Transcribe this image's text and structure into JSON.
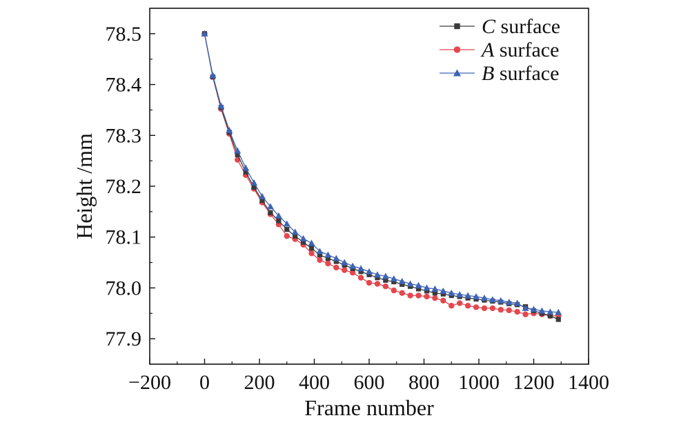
{
  "chart_data": {
    "type": "line",
    "title": "",
    "xlabel": "Frame number",
    "ylabel": "Height /mm",
    "xlim": [
      -200,
      1400
    ],
    "ylim": [
      77.85,
      78.55
    ],
    "xticks": [
      -200,
      0,
      200,
      400,
      600,
      800,
      1000,
      1200,
      1400
    ],
    "xtick_labels": [
      "−200",
      "0",
      "200",
      "400",
      "600",
      "800",
      "1000",
      "1200",
      "1400"
    ],
    "yticks": [
      77.9,
      78.0,
      78.1,
      78.2,
      78.3,
      78.4,
      78.5
    ],
    "ytick_labels": [
      "77.9",
      "78.0",
      "78.1",
      "78.2",
      "78.3",
      "78.4",
      "78.5"
    ],
    "grid": false,
    "legend_position": "top-right",
    "x": [
      0,
      30,
      60,
      90,
      120,
      150,
      180,
      210,
      240,
      270,
      300,
      330,
      360,
      390,
      420,
      450,
      480,
      510,
      540,
      570,
      600,
      630,
      660,
      690,
      720,
      750,
      780,
      810,
      840,
      870,
      900,
      930,
      960,
      990,
      1020,
      1050,
      1080,
      1110,
      1140,
      1170,
      1200,
      1230,
      1260,
      1290
    ],
    "series": [
      {
        "name": "C",
        "name_suffix": "surface",
        "marker": "square",
        "color": "#3a3a3a",
        "values": [
          78.5,
          78.415,
          78.355,
          78.306,
          78.262,
          78.228,
          78.198,
          78.172,
          78.148,
          78.132,
          78.115,
          78.102,
          78.09,
          78.078,
          78.065,
          78.058,
          78.052,
          78.045,
          78.038,
          78.032,
          78.026,
          78.02,
          78.015,
          78.012,
          78.007,
          78.003,
          77.998,
          77.994,
          77.99,
          77.988,
          77.985,
          77.983,
          77.98,
          77.978,
          77.976,
          77.974,
          77.972,
          77.969,
          77.967,
          77.963,
          77.955,
          77.95,
          77.945,
          77.938
        ]
      },
      {
        "name": "A",
        "name_suffix": "surface",
        "marker": "circle",
        "color": "#e4474e",
        "values": [
          78.5,
          78.415,
          78.352,
          78.303,
          78.252,
          78.222,
          78.195,
          78.168,
          78.145,
          78.125,
          78.102,
          78.096,
          78.085,
          78.068,
          78.055,
          78.048,
          78.04,
          78.035,
          78.03,
          78.02,
          78.01,
          78.008,
          78.003,
          77.995,
          77.99,
          77.985,
          77.985,
          77.983,
          77.98,
          77.975,
          77.965,
          77.97,
          77.965,
          77.962,
          77.96,
          77.96,
          77.957,
          77.956,
          77.953,
          77.948,
          77.95,
          77.948,
          77.945,
          77.945
        ]
      },
      {
        "name": "B",
        "name_suffix": "surface",
        "marker": "triangle",
        "color": "#3e64b5",
        "values": [
          78.5,
          78.418,
          78.358,
          78.31,
          78.27,
          78.236,
          78.207,
          78.18,
          78.16,
          78.142,
          78.126,
          78.11,
          78.097,
          78.088,
          78.072,
          78.065,
          78.058,
          78.05,
          78.043,
          78.038,
          78.032,
          78.026,
          78.023,
          78.018,
          78.013,
          78.008,
          78.005,
          78.0,
          77.998,
          77.994,
          77.99,
          77.987,
          77.985,
          77.983,
          77.98,
          77.977,
          77.975,
          77.972,
          77.97,
          77.96,
          77.958,
          77.955,
          77.953,
          77.952
        ]
      }
    ]
  }
}
